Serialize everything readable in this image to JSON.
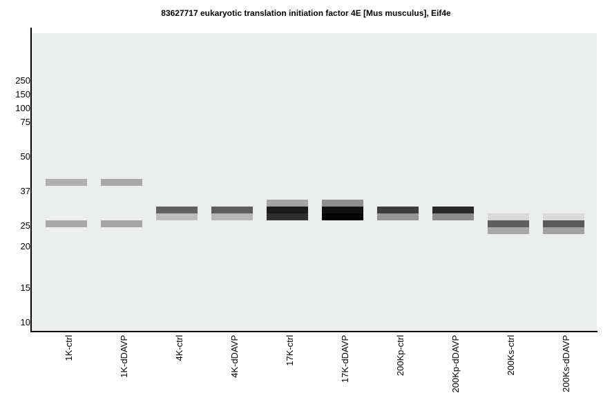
{
  "title": "83627717 eukaryotic translation initiation factor 4E [Mus musculus], Eif4e",
  "mw_markers": [
    "250",
    "150",
    "100",
    "75",
    "50",
    "37",
    "25",
    "20",
    "15",
    "10"
  ],
  "lanes": [
    "1K-ctrl",
    "1K-dDAVP",
    "4K-ctrl",
    "4K-dDAVP",
    "17K-ctrl",
    "17K-dDAVP",
    "200Kp-ctrl",
    "200Kp-dDAVP",
    "200Ks-ctrl",
    "200Ks-dDAVP"
  ],
  "bands": [
    {
      "lane": 0,
      "row": 0,
      "color": "#aeaeae"
    },
    {
      "lane": 0,
      "row": 6,
      "color": "#a9a9a9"
    },
    {
      "lane": 1,
      "row": 0,
      "color": "#a9a9a9"
    },
    {
      "lane": 1,
      "row": 6,
      "color": "#a5a5a5"
    },
    {
      "lane": 2,
      "row": 4,
      "color": "#616161"
    },
    {
      "lane": 2,
      "row": 5,
      "color": "#bdbdbd"
    },
    {
      "lane": 3,
      "row": 4,
      "color": "#5e5e5e"
    },
    {
      "lane": 3,
      "row": 5,
      "color": "#b7b7b7"
    },
    {
      "lane": 4,
      "row": 3,
      "color": "#a4a4a4"
    },
    {
      "lane": 4,
      "row": 4,
      "color": "#1c1c1c"
    },
    {
      "lane": 4,
      "row": 5,
      "color": "#2f2f2f"
    },
    {
      "lane": 5,
      "row": 3,
      "color": "#8e8e8e"
    },
    {
      "lane": 5,
      "row": 4,
      "color": "#111111"
    },
    {
      "lane": 5,
      "row": 5,
      "color": "#030303"
    },
    {
      "lane": 6,
      "row": 4,
      "color": "#3c3c3c"
    },
    {
      "lane": 6,
      "row": 5,
      "color": "#959595"
    },
    {
      "lane": 7,
      "row": 4,
      "color": "#272727"
    },
    {
      "lane": 7,
      "row": 5,
      "color": "#8b8b8b"
    },
    {
      "lane": 8,
      "row": 5,
      "color": "#d9d9d9"
    },
    {
      "lane": 8,
      "row": 6,
      "color": "#5d5d5d"
    },
    {
      "lane": 8,
      "row": 7,
      "color": "#a7a7a7"
    },
    {
      "lane": 9,
      "row": 5,
      "color": "#dadada"
    },
    {
      "lane": 9,
      "row": 6,
      "color": "#5a5a5a"
    },
    {
      "lane": 9,
      "row": 7,
      "color": "#a1a1a1"
    }
  ]
}
